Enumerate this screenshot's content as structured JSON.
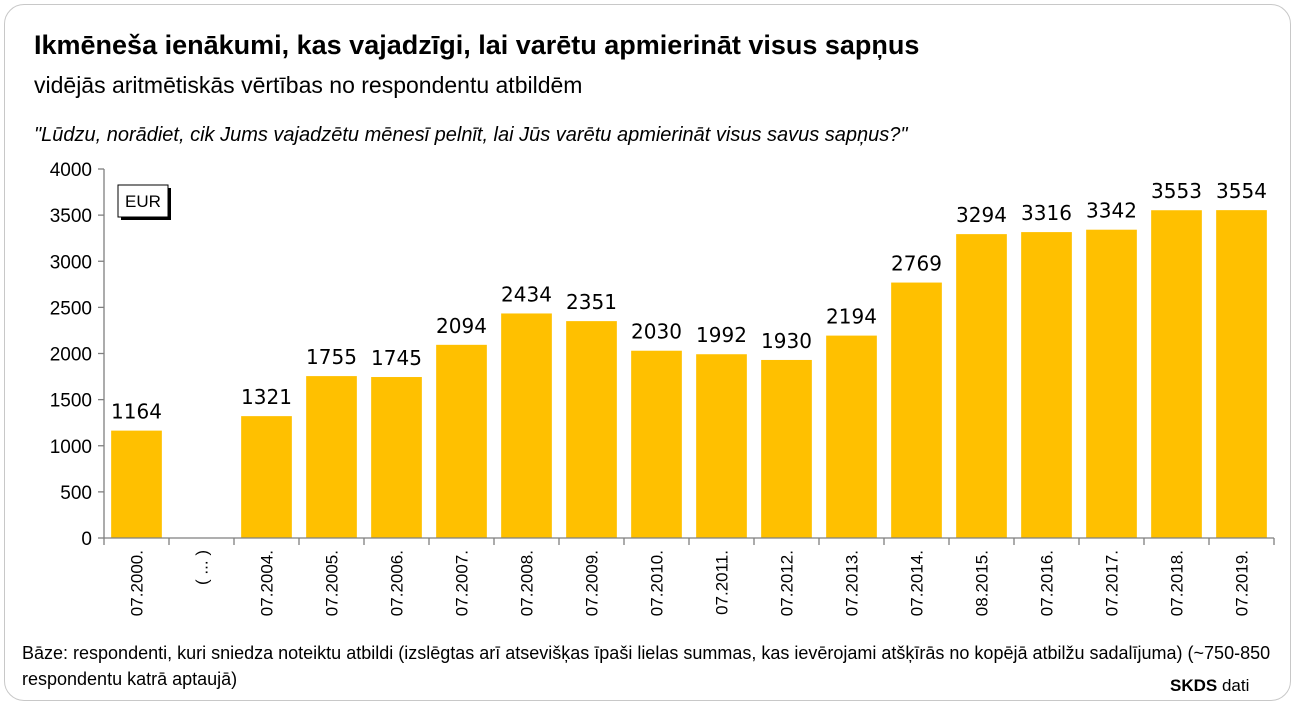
{
  "title": "Ikmēneša ienākumi, kas vajadzīgi, lai varētu apmierināt visus sapņus",
  "subtitle": "vidējās aritmētiskās vērtības no respondentu atbildēm",
  "question": "\"Lūdzu, norādiet, cik Jums vajadzētu mēnesī pelnīt, lai Jūs varētu apmierināt visus savus sapņus?\"",
  "unit_label": "EUR",
  "footnote": "Bāze: respondenti, kuri sniedza noteiktu atbildi (izslēgtas arī atsevišķas īpaši lielas summas, kas ievērojami atšķīrās no kopējā atbilžu sadalījuma) (~750-850 respondentu katrā aptaujā)",
  "source": {
    "brand": "SKDS",
    "suffix": "dati"
  },
  "colors": {
    "bar": "#FFC000",
    "axis": "#7f7f7f",
    "frame": "#c8c8c8"
  },
  "chart_data": {
    "type": "bar",
    "categories": [
      "07.2000.",
      "( ... )",
      "07.2004.",
      "07.2005.",
      "07.2006.",
      "07.2007.",
      "07.2008.",
      "07.2009.",
      "07.2010.",
      "07.2011.",
      "07.2012.",
      "07.2013.",
      "07.2014.",
      "08.2015.",
      "07.2016.",
      "07.2017.",
      "07.2018.",
      "07.2019."
    ],
    "values": [
      1164,
      null,
      1321,
      1755,
      1745,
      2094,
      2434,
      2351,
      2030,
      1992,
      1930,
      2194,
      2769,
      3294,
      3316,
      3342,
      3553,
      3554
    ],
    "ylim": [
      0,
      4000
    ],
    "yticks": [
      0,
      500,
      1000,
      1500,
      2000,
      2500,
      3000,
      3500,
      4000
    ],
    "grid": false,
    "legend": "none"
  }
}
